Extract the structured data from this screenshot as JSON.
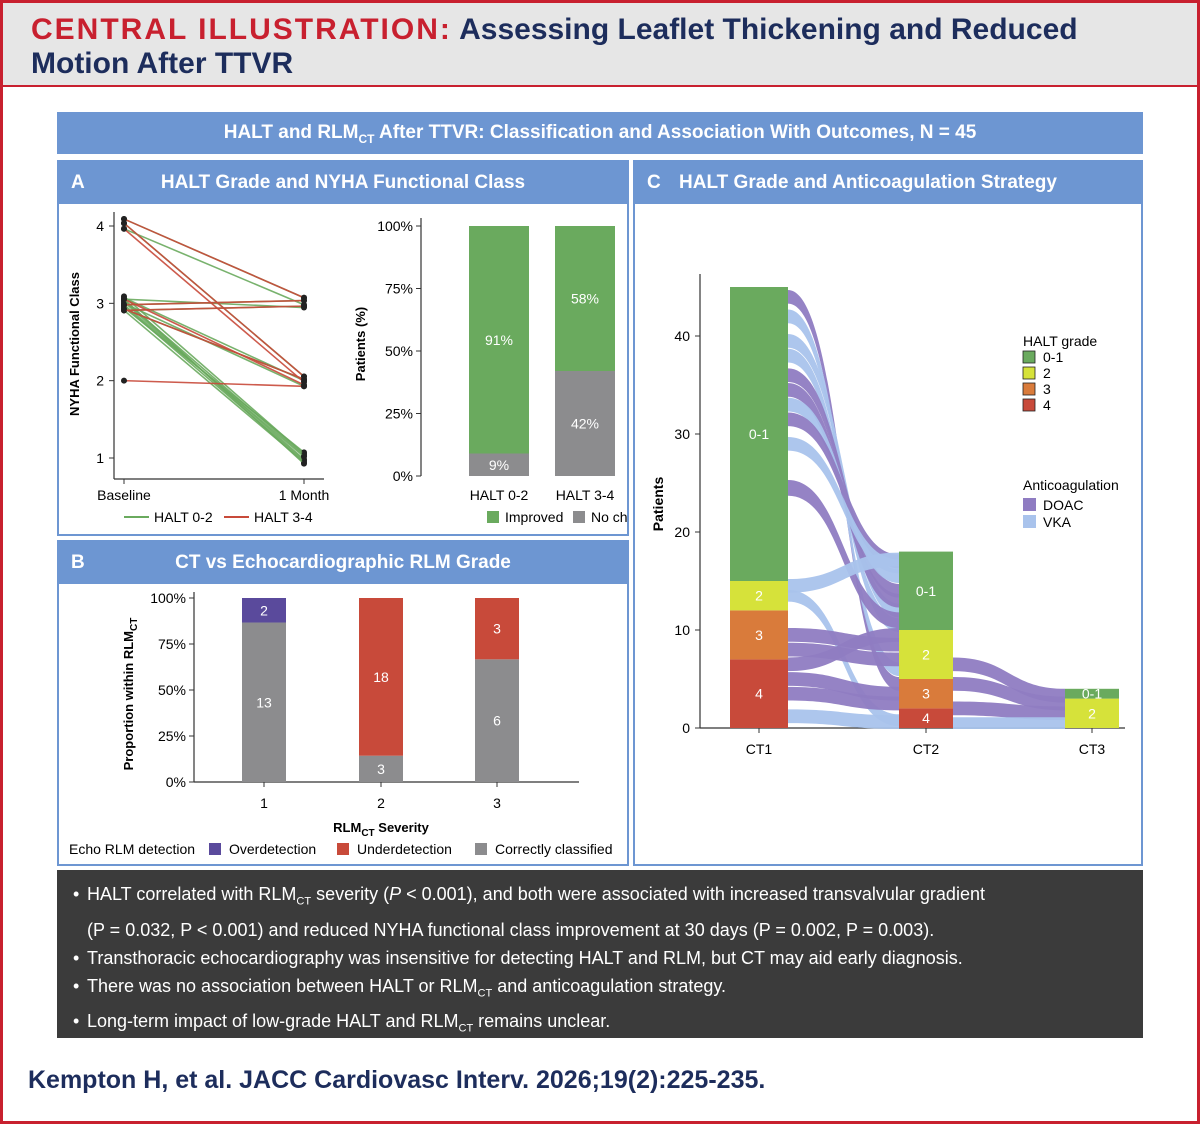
{
  "header": {
    "label": "CENTRAL ILLUSTRATION:",
    "title_line1": "Assessing Leaflet Thickening and Reduced",
    "title_line2": "Motion After TTVR"
  },
  "banner": {
    "pre": "HALT and RLM",
    "sub": "CT",
    "post": " After TTVR: Classification and Association With Outcomes, N = 45"
  },
  "panel_a": {
    "letter": "A",
    "title": "HALT Grade and NYHA Functional Class"
  },
  "panel_b": {
    "letter": "B",
    "title": "CT vs Echocardiographic RLM Grade"
  },
  "panel_c": {
    "letter": "C",
    "title": "HALT Grade and Anticoagulation Strategy"
  },
  "colors": {
    "accent_blue": "#6d96d2",
    "green": "#6aaa5e",
    "red": "#c84a3a",
    "grey": "#8c8c8e",
    "purple": "#5a4a9c",
    "yellow": "#d6e23a",
    "orange": "#d97b3b",
    "doac": "#8f7cc2",
    "vka": "#a9c3ec"
  },
  "chart_data": [
    {
      "id": "A1",
      "type": "line",
      "x": [
        "Baseline",
        "1 Month"
      ],
      "ylabel": "NYHA Functional Class",
      "ylim": [
        1,
        4
      ],
      "yticks": [
        1,
        2,
        3,
        4
      ],
      "legend": [
        "HALT 0-2",
        "HALT 3-4"
      ],
      "series": [
        {
          "name": "HALT 0-2",
          "pairs": [
            [
              4,
              3
            ],
            [
              4,
              3
            ],
            [
              4,
              2
            ],
            [
              3,
              3
            ],
            [
              3,
              3
            ],
            [
              3,
              3
            ],
            [
              3,
              2
            ],
            [
              3,
              2
            ],
            [
              3,
              2
            ],
            [
              3,
              1
            ],
            [
              3,
              1
            ],
            [
              3,
              1
            ],
            [
              3,
              1
            ],
            [
              3,
              1
            ],
            [
              3,
              1
            ],
            [
              3,
              1
            ],
            [
              3,
              1
            ]
          ]
        },
        {
          "name": "HALT 3-4",
          "pairs": [
            [
              4,
              3
            ],
            [
              4,
              2
            ],
            [
              4,
              2
            ],
            [
              3,
              3
            ],
            [
              3,
              3
            ],
            [
              3,
              2
            ],
            [
              3,
              2
            ],
            [
              2,
              2
            ]
          ]
        }
      ]
    },
    {
      "id": "A2",
      "type": "bar",
      "stacked": true,
      "categories": [
        "HALT 0-2",
        "HALT 3-4"
      ],
      "ylabel": "Patients (%)",
      "yticks": [
        "0%",
        "25%",
        "50%",
        "75%",
        "100%"
      ],
      "legend": [
        "Improved",
        "No change"
      ],
      "series": [
        {
          "name": "No change",
          "values": [
            9,
            42
          ],
          "labels": [
            "9%",
            "42%"
          ]
        },
        {
          "name": "Improved",
          "values": [
            91,
            58
          ],
          "labels": [
            "91%",
            "58%"
          ]
        }
      ]
    },
    {
      "id": "B",
      "type": "bar",
      "stacked": true,
      "categories": [
        "1",
        "2",
        "3"
      ],
      "xlabel_pre": "RLM",
      "xlabel_sub": "CT",
      "xlabel_post": " Severity",
      "ylabel_pre": "Proportion within RLM",
      "ylabel_sub": "CT",
      "yticks": [
        "0%",
        "25%",
        "50%",
        "75%",
        "100%"
      ],
      "legend_title": "Echo RLM detection",
      "legend": [
        "Overdetection",
        "Underdetection",
        "Correctly classified"
      ],
      "stacks": [
        [
          {
            "k": "Correctly classified",
            "v": 13
          },
          {
            "k": "Overdetection",
            "v": 2
          }
        ],
        [
          {
            "k": "Correctly classified",
            "v": 3
          },
          {
            "k": "Underdetection",
            "v": 18
          }
        ],
        [
          {
            "k": "Correctly classified",
            "v": 6
          },
          {
            "k": "Underdetection",
            "v": 3
          }
        ]
      ]
    },
    {
      "id": "C",
      "type": "alluvial",
      "categories": [
        "CT1",
        "CT2",
        "CT3"
      ],
      "ylabel": "Patients",
      "yticks": [
        0,
        10,
        20,
        30,
        40
      ],
      "ylim": [
        0,
        45
      ],
      "legend_grade_title": "HALT grade",
      "legend_grade": [
        "0-1",
        "2",
        "3",
        "4"
      ],
      "legend_ac_title": "Anticoagulation",
      "legend_ac": [
        "DOAC",
        "VKA"
      ],
      "stacks": [
        [
          {
            "g": "4",
            "v": 7
          },
          {
            "g": "3",
            "v": 5
          },
          {
            "g": "2",
            "v": 3
          },
          {
            "g": "0-1",
            "v": 30
          }
        ],
        [
          {
            "g": "4",
            "v": 2
          },
          {
            "g": "3",
            "v": 3
          },
          {
            "g": "2",
            "v": 5
          },
          {
            "g": "0-1",
            "v": 8
          }
        ],
        [
          {
            "g": "2",
            "v": 3
          },
          {
            "g": "0-1",
            "v": 1
          }
        ]
      ],
      "segment_labels": [
        [
          "4",
          "3",
          "2",
          "0-1"
        ],
        [
          "4",
          "3",
          "2",
          "0-1"
        ],
        [
          "2",
          "0-1"
        ]
      ]
    }
  ],
  "bullets": [
    {
      "pre": "HALT correlated with RLM",
      "sub": "CT",
      "post": " severity (",
      "i1": "P",
      "post2": " < 0.001), and both were associated with increased transvalvular gradient"
    },
    {
      "line2": "(P = 0.032, P < 0.001) and reduced NYHA functional class improvement at 30 days (P = 0.002, P = 0.003)."
    },
    {
      "text": "Transthoracic echocardiography was insensitive for detecting HALT and RLM, but CT may aid early diagnosis."
    },
    {
      "pre": "There was no association between HALT or RLM",
      "sub": "CT",
      "post": " and anticoagulation strategy."
    },
    {
      "pre": "Long-term impact of low-grade HALT and RLM",
      "sub": "CT",
      "post": " remains unclear."
    }
  ],
  "citation": "Kempton H, et al. JACC Cardiovasc Interv. 2026;19(2):225-235."
}
